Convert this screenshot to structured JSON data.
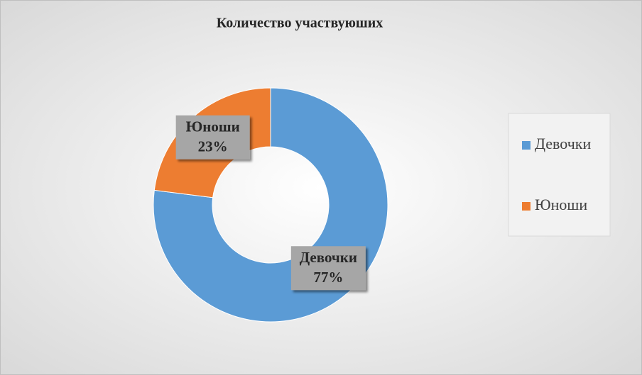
{
  "chart_data": {
    "type": "donut",
    "title": "Количество участвуюших",
    "categories": [
      "Девочки",
      "Юноши"
    ],
    "values": [
      77,
      23
    ],
    "value_labels": [
      "77%",
      "23%"
    ],
    "colors": [
      "#5b9bd5",
      "#ed7d31"
    ],
    "legend": "right"
  }
}
